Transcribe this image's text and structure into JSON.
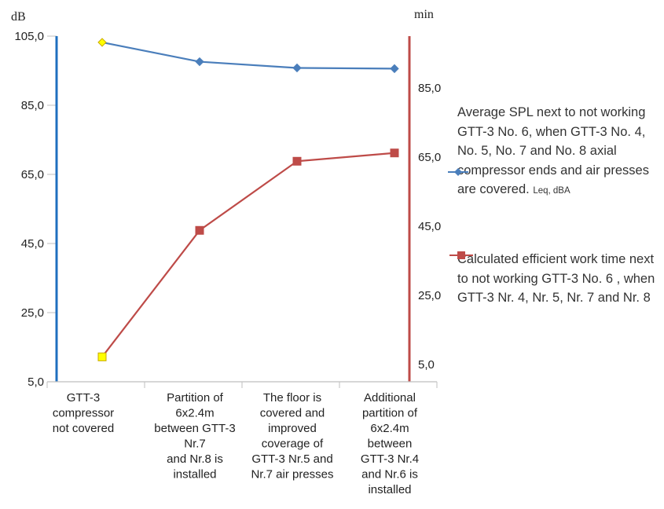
{
  "chart_data": {
    "type": "line",
    "xlabel": "",
    "ylabel": "dB",
    "y2label": "min",
    "categories": [
      [
        "GTT-3",
        "compressor",
        "not covered"
      ],
      [
        "Partition of",
        "6x2.4m",
        "between GTT-3",
        "Nr.7",
        "and Nr.8 is",
        "installed"
      ],
      [
        "The floor is",
        "covered and",
        "improved",
        "coverage of",
        "GTT-3 Nr.5 and",
        "Nr.7 air presses"
      ],
      [
        "Additional",
        "partition of",
        "6x2.4m",
        "between",
        "GTT-3 Nr.4",
        "and Nr.6 is",
        "installed"
      ]
    ],
    "y_left": {
      "min": 5,
      "max": 105,
      "ticks": [
        "5,0",
        "25,0",
        "45,0",
        "65,0",
        "85,0",
        "105,0"
      ],
      "tick_values": [
        5,
        25,
        45,
        65,
        85,
        105
      ]
    },
    "y_right": {
      "min": 0,
      "max": 100,
      "ticks": [
        "5,0",
        "25,0",
        "45,0",
        "65,0",
        "85,0"
      ],
      "tick_values": [
        5,
        25,
        45,
        65,
        85
      ]
    },
    "grid": false,
    "legend_position": "right",
    "series": [
      {
        "name": "Average SPL next to not working GTT-3 No. 6, when GTT-3 No. 4, No. 5, No. 7 and No. 8 axial compressor ends and air presses are covered.",
        "name_suffix": "Leq, dBA",
        "axis": "left",
        "values": [
          103.2,
          97.6,
          95.8,
          95.6
        ],
        "color": "#4a7ebb",
        "marker": "diamond",
        "highlight_first_color": "#ffff00"
      },
      {
        "name": "Calculated efficient work time next to not working GTT-3 No. 6 ,  when  GTT-3 Nr. 4, Nr. 5, Nr. 7 and  Nr. 8",
        "axis": "left",
        "values": [
          12.2,
          48.8,
          68.8,
          71.2
        ],
        "color": "#be4b48",
        "marker": "square",
        "highlight_first_color": "#ffff00"
      }
    ],
    "axis_colors": {
      "left": "#1f6fbf",
      "right": "#be4b48"
    }
  }
}
